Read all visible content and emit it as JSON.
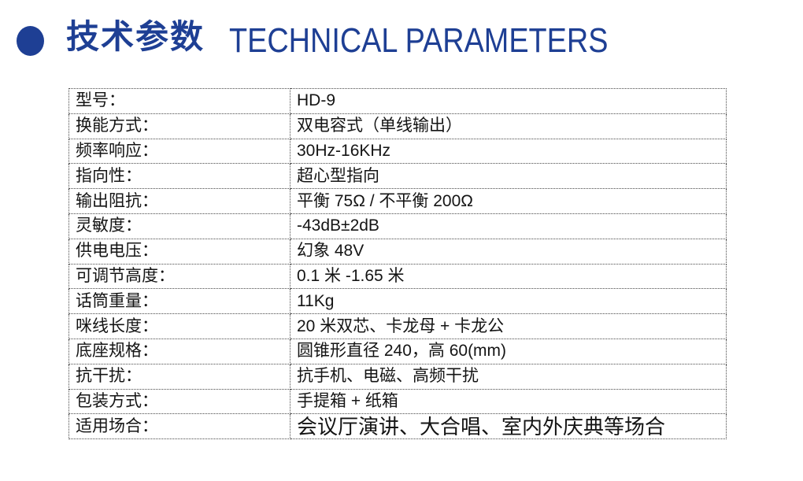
{
  "header": {
    "bullet_icon": "circle-bullet",
    "title_cn": "技术参数",
    "title_en": "TECHNICAL PARAMETERS",
    "accent_color": "#1e3f94"
  },
  "table": {
    "rows": [
      {
        "label": "型号：",
        "value": "HD-9"
      },
      {
        "label": "换能方式：",
        "value": "双电容式（单线输出）"
      },
      {
        "label": "频率响应：",
        "value": "30Hz-16KHz"
      },
      {
        "label": "指向性：",
        "value": "超心型指向"
      },
      {
        "label": "输出阻抗：",
        "value": "平衡 75Ω / 不平衡 200Ω"
      },
      {
        "label": "灵敏度：",
        "value": "-43dB±2dB"
      },
      {
        "label": "供电电压：",
        "value": "幻象 48V"
      },
      {
        "label": "可调节高度：",
        "value": "0.1 米 -1.65 米"
      },
      {
        "label": "话筒重量：",
        "value": "11Kg"
      },
      {
        "label": "咪线长度：",
        "value": "20 米双芯、卡龙母 + 卡龙公"
      },
      {
        "label": "底座规格：",
        "value": "圆锥形直径 240，高 60(mm)"
      },
      {
        "label": "抗干扰：",
        "value": "抗手机、电磁、高频干扰"
      },
      {
        "label": "包装方式：",
        "value": "手提箱 + 纸箱"
      },
      {
        "label": "适用场合：",
        "value": "会议厅演讲、大合唱、室内外庆典等场合"
      }
    ]
  }
}
